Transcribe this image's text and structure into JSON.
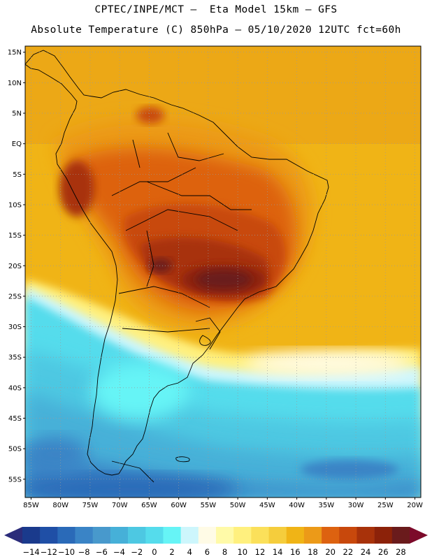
{
  "titles": {
    "line1": "CPTEC/INPE/MCT –  Eta Model 15km – GFS",
    "line2": "Absolute Temperature (C) 850hPa – 05/10/2020 12UTC fct=60h"
  },
  "map": {
    "lat_labels": [
      "15N",
      "10N",
      "5N",
      "EQ",
      "5S",
      "10S",
      "15S",
      "20S",
      "25S",
      "30S",
      "35S",
      "40S",
      "45S",
      "50S",
      "55S"
    ],
    "lon_labels": [
      "85W",
      "80W",
      "75W",
      "70W",
      "65W",
      "60W",
      "55W",
      "50W",
      "45W",
      "40W",
      "35W",
      "30W",
      "25W",
      "20W"
    ],
    "lat_values": [
      15,
      10,
      5,
      0,
      -5,
      -10,
      -15,
      -20,
      -25,
      -30,
      -35,
      -40,
      -45,
      -50,
      -55
    ],
    "lon_values": [
      -85,
      -80,
      -75,
      -70,
      -65,
      -60,
      -55,
      -50,
      -45,
      -40,
      -35,
      -30,
      -25,
      -20
    ],
    "lat_range": [
      -58,
      16
    ],
    "lon_range": [
      -86,
      -19
    ],
    "grid": "dotted"
  },
  "colorbar": {
    "labels": [
      "-14",
      "-12",
      "-10",
      "-8",
      "-6",
      "-4",
      "-2",
      "0",
      "2",
      "4",
      "6",
      "8",
      "10",
      "12",
      "14",
      "16",
      "18",
      "20",
      "22",
      "24",
      "26",
      "28"
    ],
    "colors": [
      "#1a3a8c",
      "#1f4fa6",
      "#2a6ab8",
      "#3a84c6",
      "#4899cc",
      "#46b0d8",
      "#4dc8e2",
      "#55dcec",
      "#66f4f6",
      "#cdf6fc",
      "#fffbe6",
      "#fffaa8",
      "#fff07e",
      "#fbe05a",
      "#f5cd3c",
      "#f0b416",
      "#ec9a18",
      "#dd6210",
      "#c8480c",
      "#a8320a",
      "#8c2209",
      "#6a1b1c"
    ],
    "end_low_color": "#2b2c7a",
    "end_high_color": "#7c0a2a"
  }
}
